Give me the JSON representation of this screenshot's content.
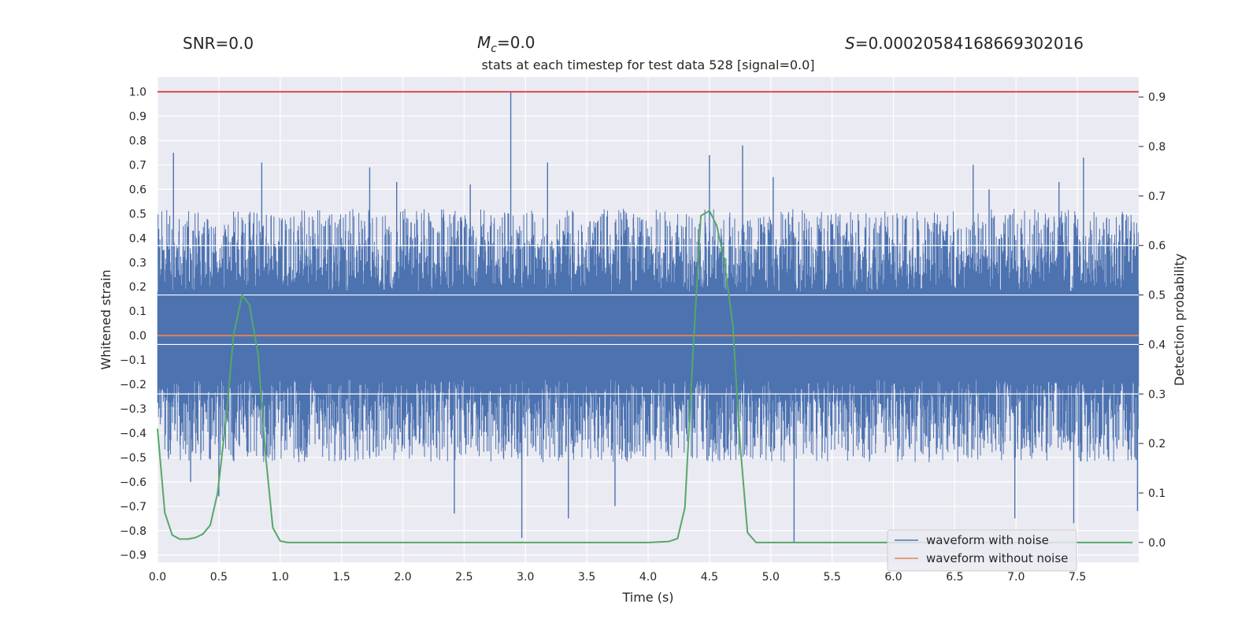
{
  "header": {
    "snr_label": "SNR=0.0",
    "mc_symbol": "M",
    "mc_sub": "c",
    "mc_value": "=0.0",
    "s_symbol": "S",
    "s_value": "=0.00020584168669302016"
  },
  "chart_data": {
    "type": "line",
    "title": "stats at each timestep for test data 528 [signal=0.0]",
    "xlabel": "Time (s)",
    "ylabel": "Whitened strain",
    "y2label": "Detection probability",
    "xlim": [
      0.0,
      8.0
    ],
    "ylim": [
      -0.93,
      1.06
    ],
    "y2lim": [
      -0.04,
      0.94
    ],
    "grid": true,
    "legend_position": "lower-right",
    "x_ticks": [
      "0.0",
      "0.5",
      "1.0",
      "1.5",
      "2.0",
      "2.5",
      "3.0",
      "3.5",
      "4.0",
      "4.5",
      "5.0",
      "5.5",
      "6.0",
      "6.5",
      "7.0",
      "7.5"
    ],
    "y_ticks": [
      "1.0",
      "0.9",
      "0.8",
      "0.7",
      "0.6",
      "0.5",
      "0.4",
      "0.3",
      "0.2",
      "0.1",
      "0.0",
      "−0.1",
      "−0.2",
      "−0.3",
      "−0.4",
      "−0.5",
      "−0.6",
      "−0.7",
      "−0.8",
      "−0.9"
    ],
    "y2_ticks": [
      "0.9",
      "0.8",
      "0.7",
      "0.6",
      "0.5",
      "0.4",
      "0.3",
      "0.2",
      "0.1",
      "0.0"
    ],
    "threshold": {
      "value": 1.0,
      "color": "#d62728"
    },
    "series": [
      {
        "name": "waveform with noise",
        "color": "#4c72b0",
        "axis": "left",
        "style": "dense-noise",
        "core_band": [
          -0.18,
          0.18
        ],
        "typical_upper": 0.4,
        "typical_lower": -0.4,
        "spikes": [
          [
            0.13,
            0.75
          ],
          [
            0.85,
            0.71
          ],
          [
            1.73,
            0.69
          ],
          [
            2.88,
            1.0
          ],
          [
            2.97,
            -0.83
          ],
          [
            3.18,
            0.71
          ],
          [
            3.35,
            -0.75
          ],
          [
            4.5,
            0.74
          ],
          [
            4.77,
            0.78
          ],
          [
            5.19,
            -0.85
          ],
          [
            7.55,
            0.73
          ],
          [
            7.35,
            0.63
          ],
          [
            7.47,
            -0.77
          ],
          [
            6.99,
            -0.75
          ],
          [
            2.42,
            -0.73
          ],
          [
            2.55,
            0.62
          ],
          [
            7.99,
            -0.72
          ],
          [
            0.27,
            -0.6
          ],
          [
            0.5,
            -0.66
          ],
          [
            6.65,
            0.7
          ],
          [
            3.73,
            -0.7
          ],
          [
            6.78,
            0.6
          ],
          [
            1.95,
            0.63
          ],
          [
            5.02,
            0.65
          ]
        ]
      },
      {
        "name": "waveform without noise",
        "color": "#dd8452",
        "axis": "left",
        "x": [
          0.0,
          8.0
        ],
        "y": [
          0.0,
          0.0
        ]
      },
      {
        "name": "detection probability",
        "color": "#55a868",
        "axis": "right",
        "x": [
          0.0,
          0.06,
          0.12,
          0.18,
          0.25,
          0.31,
          0.37,
          0.43,
          0.49,
          0.56,
          0.62,
          0.69,
          0.75,
          0.82,
          0.88,
          0.94,
          1.0,
          1.06,
          1.2,
          2.0,
          3.0,
          4.0,
          4.17,
          4.24,
          4.3,
          4.37,
          4.43,
          4.5,
          4.56,
          4.62,
          4.69,
          4.75,
          4.81,
          4.88,
          4.94,
          6.0,
          7.0,
          7.95
        ],
        "y": [
          0.23,
          0.06,
          0.015,
          0.007,
          0.007,
          0.01,
          0.017,
          0.035,
          0.1,
          0.25,
          0.42,
          0.5,
          0.48,
          0.38,
          0.18,
          0.03,
          0.003,
          0.0,
          0.0,
          0.0,
          0.0,
          0.0,
          0.002,
          0.008,
          0.07,
          0.4,
          0.66,
          0.67,
          0.64,
          0.57,
          0.44,
          0.2,
          0.02,
          0.0,
          0.0,
          0.0,
          0.0,
          0.0
        ]
      }
    ]
  }
}
